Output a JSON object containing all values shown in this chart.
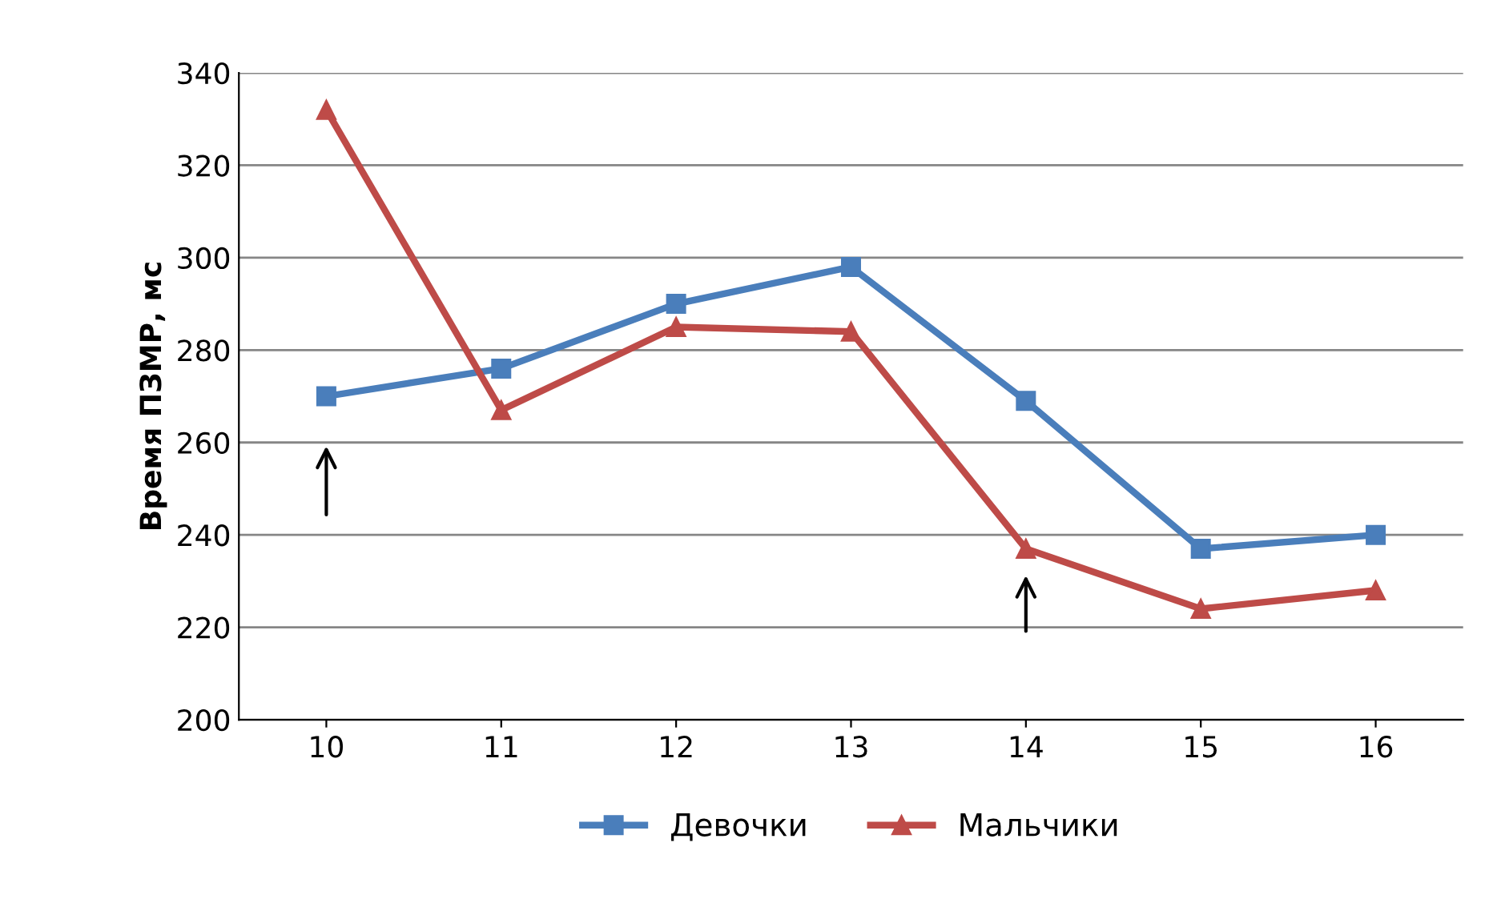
{
  "chart_data": {
    "type": "line",
    "ylabel": "Время ПЗМР, мс",
    "categories": [
      "10",
      "11",
      "12",
      "13",
      "14",
      "15",
      "16"
    ],
    "series": [
      {
        "name": "Девочки",
        "color": "#4a7ebb",
        "marker": "square",
        "values": [
          270,
          276,
          290,
          298,
          269,
          237,
          240
        ]
      },
      {
        "name": "Мальчики",
        "color": "#be4b48",
        "marker": "triangle",
        "values": [
          332,
          267,
          285,
          284,
          237,
          224,
          228
        ]
      }
    ],
    "ylim": [
      200,
      340
    ],
    "yticks": [
      200,
      220,
      240,
      260,
      280,
      300,
      320,
      340
    ],
    "grid": "y",
    "legend": "bottom",
    "line_style": "solid"
  }
}
